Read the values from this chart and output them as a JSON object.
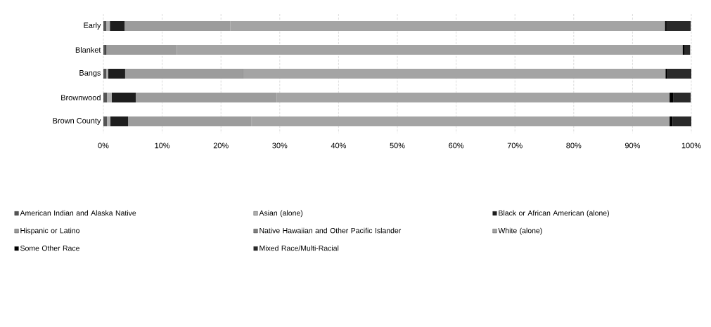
{
  "chart_data": {
    "type": "bar",
    "orientation": "horizontal",
    "stacked": true,
    "categories": [
      "Early",
      "Blanket",
      "Bangs",
      "Brownwood",
      "Brown County"
    ],
    "series": [
      {
        "name": "American Indian and Alaska Native",
        "color": "#555555",
        "values": [
          0.5,
          0.3,
          0.5,
          0.6,
          0.6
        ]
      },
      {
        "name": "Asian (alone)",
        "color": "#b0b0b0",
        "values": [
          0.6,
          null,
          0.3,
          0.8,
          0.6
        ]
      },
      {
        "name": "Black or African American (alone)",
        "color": "#1e1e1e",
        "values": [
          2.5,
          0.2,
          2.9,
          4.1,
          3.0
        ]
      },
      {
        "name": "Hispanic or Latino",
        "color": "#9c9c9c",
        "values": [
          18,
          12,
          20,
          24,
          21
        ]
      },
      {
        "name": "Native Hawaiian and Other Pacific Islander",
        "color": "#808080",
        "values": [
          null,
          0,
          0.1,
          null,
          0.1
        ]
      },
      {
        "name": "White (alone)",
        "color": "#a4a4a4",
        "values": [
          73.9,
          86,
          71.8,
          66.8,
          71.0
        ]
      },
      {
        "name": "Some Other Race",
        "color": "#000000",
        "values": [
          0.3,
          0.3,
          0.4,
          0.6,
          0.5
        ]
      },
      {
        "name": "Mixed Race/Multi-Racial",
        "color": "#2a2a2a",
        "values": [
          4.1,
          1.0,
          4.0,
          3.0,
          3.2
        ]
      }
    ],
    "xlim": [
      0,
      100
    ],
    "xticks": [
      {
        "value": 0,
        "label": "0%"
      },
      {
        "value": 10,
        "label": "10%"
      },
      {
        "value": 20,
        "label": "20%"
      },
      {
        "value": 30,
        "label": "30%"
      },
      {
        "value": 40,
        "label": "40%"
      },
      {
        "value": 50,
        "label": "50%"
      },
      {
        "value": 60,
        "label": "60%"
      },
      {
        "value": 70,
        "label": "70%"
      },
      {
        "value": 80,
        "label": "80%"
      },
      {
        "value": 90,
        "label": "90%"
      },
      {
        "value": 100,
        "label": "100%"
      }
    ],
    "grid": "x",
    "legend": "bottom"
  }
}
